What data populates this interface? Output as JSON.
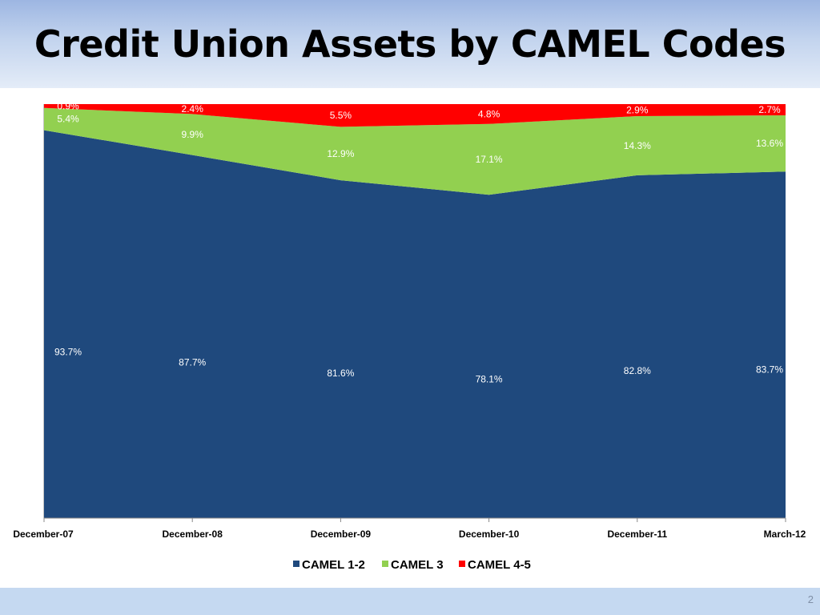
{
  "slide": {
    "title": "Credit Union Assets by CAMEL Codes",
    "page_number": "2"
  },
  "chart_data": {
    "type": "area",
    "stacked": "percent",
    "categories": [
      "December-07",
      "December-08",
      "December-09",
      "December-10",
      "December-11",
      "March-12"
    ],
    "series": [
      {
        "name": "CAMEL 1-2",
        "color": "#1f497d",
        "values": [
          93.7,
          87.7,
          81.6,
          78.1,
          82.8,
          83.7
        ],
        "labels": [
          "93.7%",
          "87.7%",
          "81.6%",
          "78.1%",
          "82.8%",
          "83.7%"
        ]
      },
      {
        "name": "CAMEL 3",
        "color": "#92d050",
        "values": [
          5.4,
          9.9,
          12.9,
          17.1,
          14.3,
          13.6
        ],
        "labels": [
          "5.4%",
          "9.9%",
          "12.9%",
          "17.1%",
          "14.3%",
          "13.6%"
        ]
      },
      {
        "name": "CAMEL 4-5",
        "color": "#ff0000",
        "values": [
          0.9,
          2.4,
          5.5,
          4.8,
          2.9,
          2.7
        ],
        "labels": [
          "0.9%",
          "2.4%",
          "5.5%",
          "4.8%",
          "2.9%",
          "2.7%"
        ]
      }
    ],
    "ylim": [
      0,
      100
    ],
    "legend_position": "bottom",
    "grid": false
  }
}
